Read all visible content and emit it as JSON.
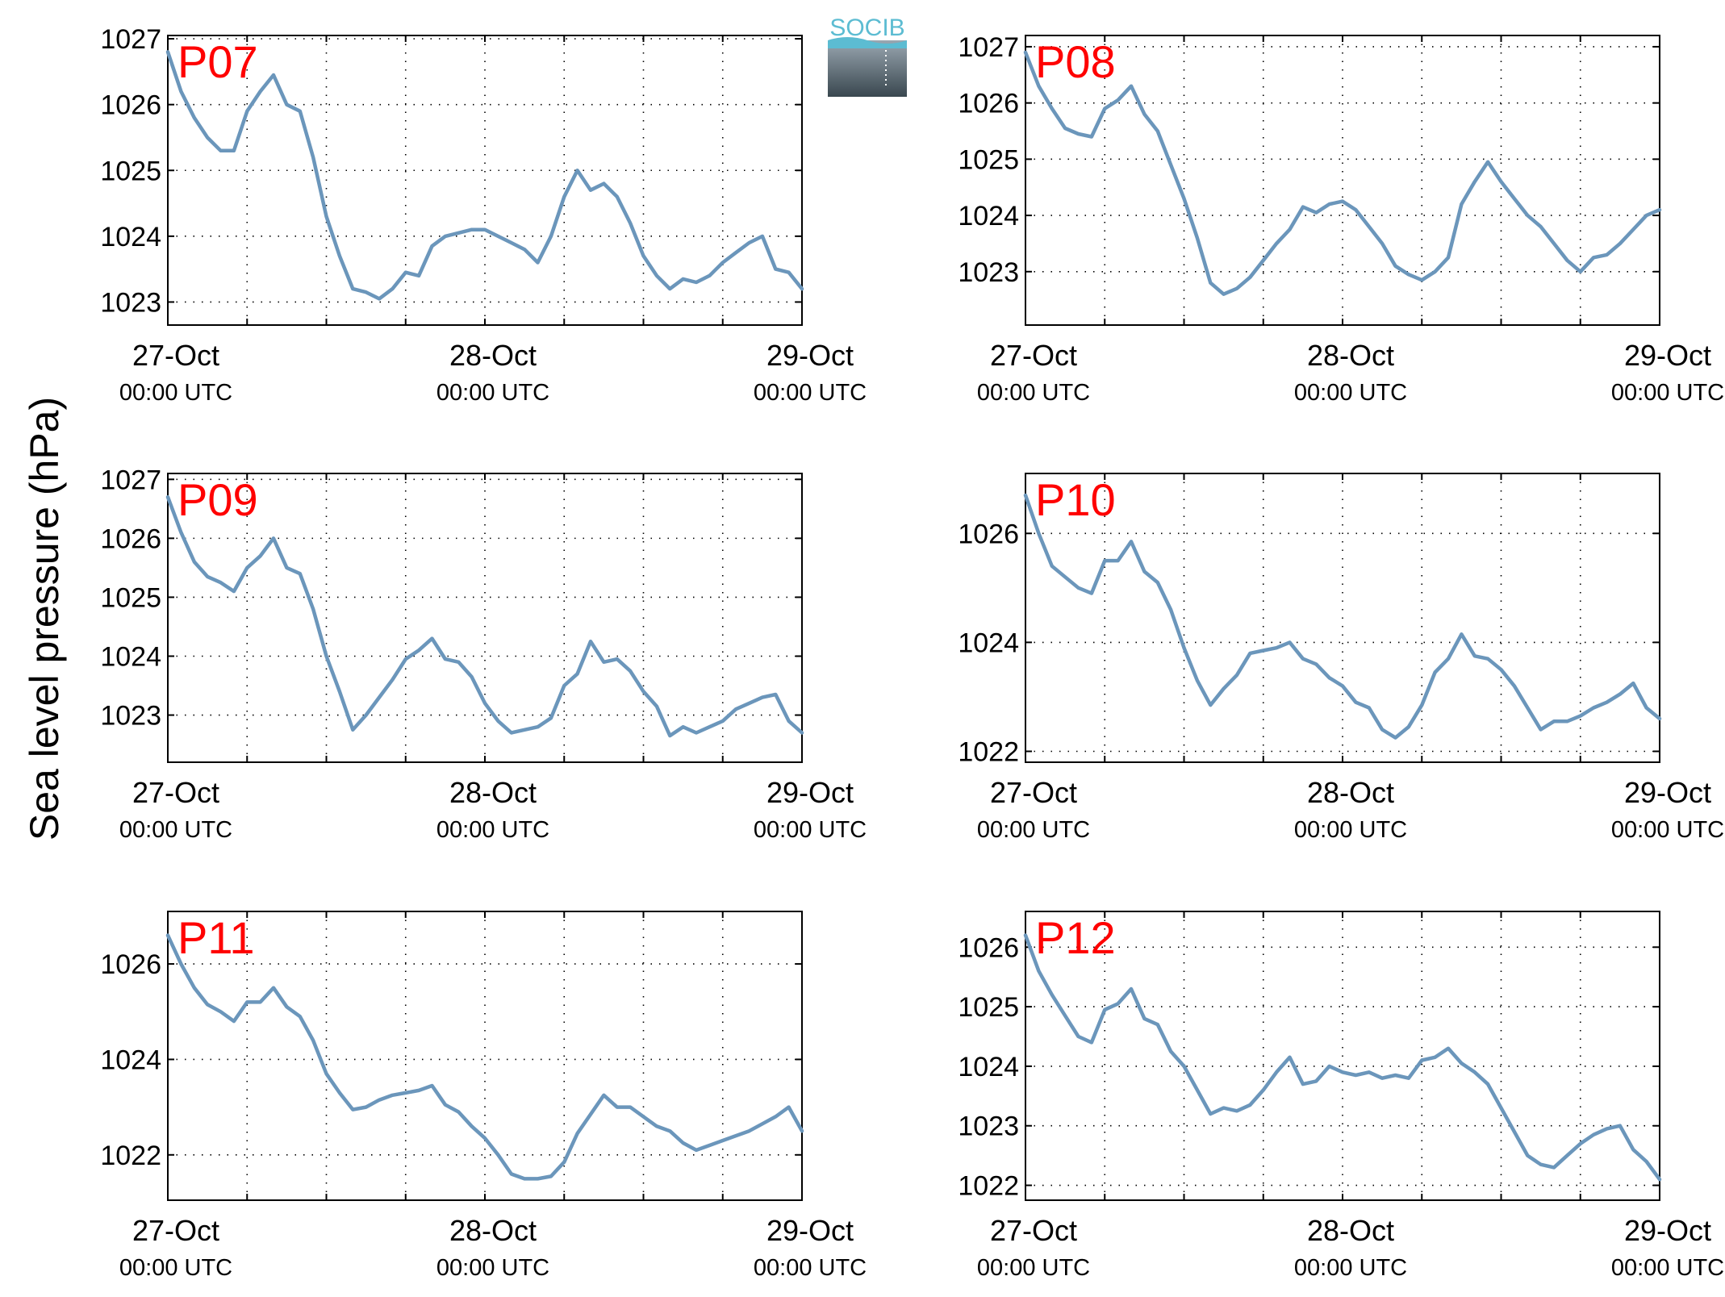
{
  "figure": {
    "ylabel": "Sea level pressure (hPa)",
    "logo_text": "SOCIB",
    "line_color": "#6b96bb",
    "label_color": "#ff0000",
    "x_tick_labels": [
      {
        "date": "27-Oct",
        "time": "00:00 UTC"
      },
      {
        "date": "28-Oct",
        "time": "00:00 UTC"
      },
      {
        "date": "29-Oct",
        "time": "00:00 UTC"
      }
    ]
  },
  "chart_data": [
    {
      "type": "line",
      "title": "P07",
      "x_unit": "hours since 27-Oct 00:00 UTC",
      "xlim": [
        0,
        48
      ],
      "ylim": [
        1022.65,
        1027.05
      ],
      "yticks": [
        1023,
        1024,
        1025,
        1026,
        1027
      ],
      "grid": true,
      "x": [
        0,
        1,
        2,
        3,
        4,
        5,
        6,
        7,
        8,
        9,
        10,
        11,
        12,
        13,
        14,
        15,
        16,
        17,
        18,
        19,
        20,
        21,
        22,
        23,
        24,
        25,
        26,
        27,
        28,
        29,
        30,
        31,
        32,
        33,
        34,
        35,
        36,
        37,
        38,
        39,
        40,
        41,
        42,
        43,
        44,
        45,
        46,
        47,
        48
      ],
      "values": [
        1026.8,
        1026.2,
        1025.8,
        1025.5,
        1025.3,
        1025.3,
        1025.9,
        1026.2,
        1026.45,
        1026.0,
        1025.9,
        1025.2,
        1024.3,
        1023.7,
        1023.2,
        1023.15,
        1023.05,
        1023.2,
        1023.45,
        1023.4,
        1023.85,
        1024.0,
        1024.05,
        1024.1,
        1024.1,
        1024.0,
        1023.9,
        1023.8,
        1023.6,
        1024.0,
        1024.6,
        1025.0,
        1024.7,
        1024.8,
        1024.6,
        1024.2,
        1023.7,
        1023.4,
        1023.2,
        1023.35,
        1023.3,
        1023.4,
        1023.6,
        1023.75,
        1023.9,
        1024.0,
        1023.5,
        1023.45,
        1023.2
      ]
    },
    {
      "type": "line",
      "title": "P08",
      "x_unit": "hours since 27-Oct 00:00 UTC",
      "xlim": [
        0,
        48
      ],
      "ylim": [
        1022.05,
        1027.2
      ],
      "yticks": [
        1023,
        1024,
        1025,
        1026,
        1027
      ],
      "grid": true,
      "x": [
        0,
        1,
        2,
        3,
        4,
        5,
        6,
        7,
        8,
        9,
        10,
        11,
        12,
        13,
        14,
        15,
        16,
        17,
        18,
        19,
        20,
        21,
        22,
        23,
        24,
        25,
        26,
        27,
        28,
        29,
        30,
        31,
        32,
        33,
        34,
        35,
        36,
        37,
        38,
        39,
        40,
        41,
        42,
        43,
        44,
        45,
        46,
        47,
        48
      ],
      "values": [
        1026.9,
        1026.3,
        1025.9,
        1025.55,
        1025.45,
        1025.4,
        1025.9,
        1026.05,
        1026.3,
        1025.8,
        1025.5,
        1024.9,
        1024.3,
        1023.6,
        1022.8,
        1022.6,
        1022.7,
        1022.9,
        1023.2,
        1023.5,
        1023.75,
        1024.15,
        1024.05,
        1024.2,
        1024.25,
        1024.1,
        1023.8,
        1023.5,
        1023.1,
        1022.95,
        1022.85,
        1023.0,
        1023.25,
        1024.2,
        1024.6,
        1024.95,
        1024.6,
        1024.3,
        1024.0,
        1023.8,
        1023.5,
        1023.2,
        1023.0,
        1023.25,
        1023.3,
        1023.5,
        1023.75,
        1024.0,
        1024.1
      ]
    },
    {
      "type": "line",
      "title": "P09",
      "x_unit": "hours since 27-Oct 00:00 UTC",
      "xlim": [
        0,
        48
      ],
      "ylim": [
        1022.2,
        1027.1
      ],
      "yticks": [
        1023,
        1024,
        1025,
        1026,
        1027
      ],
      "grid": true,
      "x": [
        0,
        1,
        2,
        3,
        4,
        5,
        6,
        7,
        8,
        9,
        10,
        11,
        12,
        13,
        14,
        15,
        16,
        17,
        18,
        19,
        20,
        21,
        22,
        23,
        24,
        25,
        26,
        27,
        28,
        29,
        30,
        31,
        32,
        33,
        34,
        35,
        36,
        37,
        38,
        39,
        40,
        41,
        42,
        43,
        44,
        45,
        46,
        47,
        48
      ],
      "values": [
        1026.7,
        1026.1,
        1025.6,
        1025.35,
        1025.25,
        1025.1,
        1025.5,
        1025.7,
        1026.0,
        1025.5,
        1025.4,
        1024.8,
        1024.0,
        1023.4,
        1022.75,
        1023.0,
        1023.3,
        1023.6,
        1023.95,
        1024.1,
        1024.3,
        1023.95,
        1023.9,
        1023.65,
        1023.2,
        1022.9,
        1022.7,
        1022.75,
        1022.8,
        1022.95,
        1023.5,
        1023.7,
        1024.25,
        1023.9,
        1023.95,
        1023.75,
        1023.4,
        1023.15,
        1022.65,
        1022.8,
        1022.7,
        1022.8,
        1022.9,
        1023.1,
        1023.2,
        1023.3,
        1023.35,
        1022.9,
        1022.7
      ]
    },
    {
      "type": "line",
      "title": "P10",
      "x_unit": "hours since 27-Oct 00:00 UTC",
      "xlim": [
        0,
        48
      ],
      "ylim": [
        1021.8,
        1027.1
      ],
      "yticks": [
        1022,
        1024,
        1026
      ],
      "grid": true,
      "x": [
        0,
        1,
        2,
        3,
        4,
        5,
        6,
        7,
        8,
        9,
        10,
        11,
        12,
        13,
        14,
        15,
        16,
        17,
        18,
        19,
        20,
        21,
        22,
        23,
        24,
        25,
        26,
        27,
        28,
        29,
        30,
        31,
        32,
        33,
        34,
        35,
        36,
        37,
        38,
        39,
        40,
        41,
        42,
        43,
        44,
        45,
        46,
        47,
        48
      ],
      "values": [
        1026.7,
        1026.0,
        1025.4,
        1025.2,
        1025.0,
        1024.9,
        1025.5,
        1025.5,
        1025.85,
        1025.3,
        1025.1,
        1024.6,
        1023.9,
        1023.3,
        1022.85,
        1023.15,
        1023.4,
        1023.8,
        1023.85,
        1023.9,
        1024.0,
        1023.7,
        1023.6,
        1023.35,
        1023.2,
        1022.9,
        1022.8,
        1022.4,
        1022.25,
        1022.45,
        1022.85,
        1023.45,
        1023.7,
        1024.15,
        1023.75,
        1023.7,
        1023.5,
        1023.2,
        1022.8,
        1022.4,
        1022.55,
        1022.55,
        1022.65,
        1022.8,
        1022.9,
        1023.05,
        1023.25,
        1022.8,
        1022.6
      ]
    },
    {
      "type": "line",
      "title": "P11",
      "x_unit": "hours since 27-Oct 00:00 UTC",
      "xlim": [
        0,
        48
      ],
      "ylim": [
        1021.05,
        1027.1
      ],
      "yticks": [
        1022,
        1024,
        1026
      ],
      "grid": true,
      "x": [
        0,
        1,
        2,
        3,
        4,
        5,
        6,
        7,
        8,
        9,
        10,
        11,
        12,
        13,
        14,
        15,
        16,
        17,
        18,
        19,
        20,
        21,
        22,
        23,
        24,
        25,
        26,
        27,
        28,
        29,
        30,
        31,
        32,
        33,
        34,
        35,
        36,
        37,
        38,
        39,
        40,
        41,
        42,
        43,
        44,
        45,
        46,
        47,
        48
      ],
      "values": [
        1026.6,
        1026.0,
        1025.5,
        1025.15,
        1025.0,
        1024.8,
        1025.2,
        1025.2,
        1025.5,
        1025.1,
        1024.9,
        1024.4,
        1023.7,
        1023.3,
        1022.95,
        1023.0,
        1023.15,
        1023.25,
        1023.3,
        1023.35,
        1023.45,
        1023.05,
        1022.9,
        1022.6,
        1022.35,
        1022.0,
        1021.6,
        1021.5,
        1021.5,
        1021.55,
        1021.85,
        1022.45,
        1022.85,
        1023.25,
        1023.0,
        1023.0,
        1022.8,
        1022.6,
        1022.5,
        1022.25,
        1022.1,
        1022.2,
        1022.3,
        1022.4,
        1022.5,
        1022.65,
        1022.8,
        1023.0,
        1022.5
      ]
    },
    {
      "type": "line",
      "title": "P12",
      "x_unit": "hours since 27-Oct 00:00 UTC",
      "xlim": [
        0,
        48
      ],
      "ylim": [
        1021.75,
        1026.6
      ],
      "yticks": [
        1022,
        1023,
        1024,
        1025,
        1026
      ],
      "grid": true,
      "x": [
        0,
        1,
        2,
        3,
        4,
        5,
        6,
        7,
        8,
        9,
        10,
        11,
        12,
        13,
        14,
        15,
        16,
        17,
        18,
        19,
        20,
        21,
        22,
        23,
        24,
        25,
        26,
        27,
        28,
        29,
        30,
        31,
        32,
        33,
        34,
        35,
        36,
        37,
        38,
        39,
        40,
        41,
        42,
        43,
        44,
        45,
        46,
        47,
        48
      ],
      "values": [
        1026.2,
        1025.6,
        1025.2,
        1024.85,
        1024.5,
        1024.4,
        1024.95,
        1025.05,
        1025.3,
        1024.8,
        1024.7,
        1024.25,
        1024.0,
        1023.6,
        1023.2,
        1023.3,
        1023.25,
        1023.35,
        1023.6,
        1023.9,
        1024.15,
        1023.7,
        1023.75,
        1024.0,
        1023.9,
        1023.85,
        1023.9,
        1023.8,
        1023.85,
        1023.8,
        1024.1,
        1024.15,
        1024.3,
        1024.05,
        1023.9,
        1023.7,
        1023.3,
        1022.9,
        1022.5,
        1022.35,
        1022.3,
        1022.5,
        1022.7,
        1022.85,
        1022.95,
        1023.0,
        1022.6,
        1022.4,
        1022.1
      ]
    }
  ]
}
